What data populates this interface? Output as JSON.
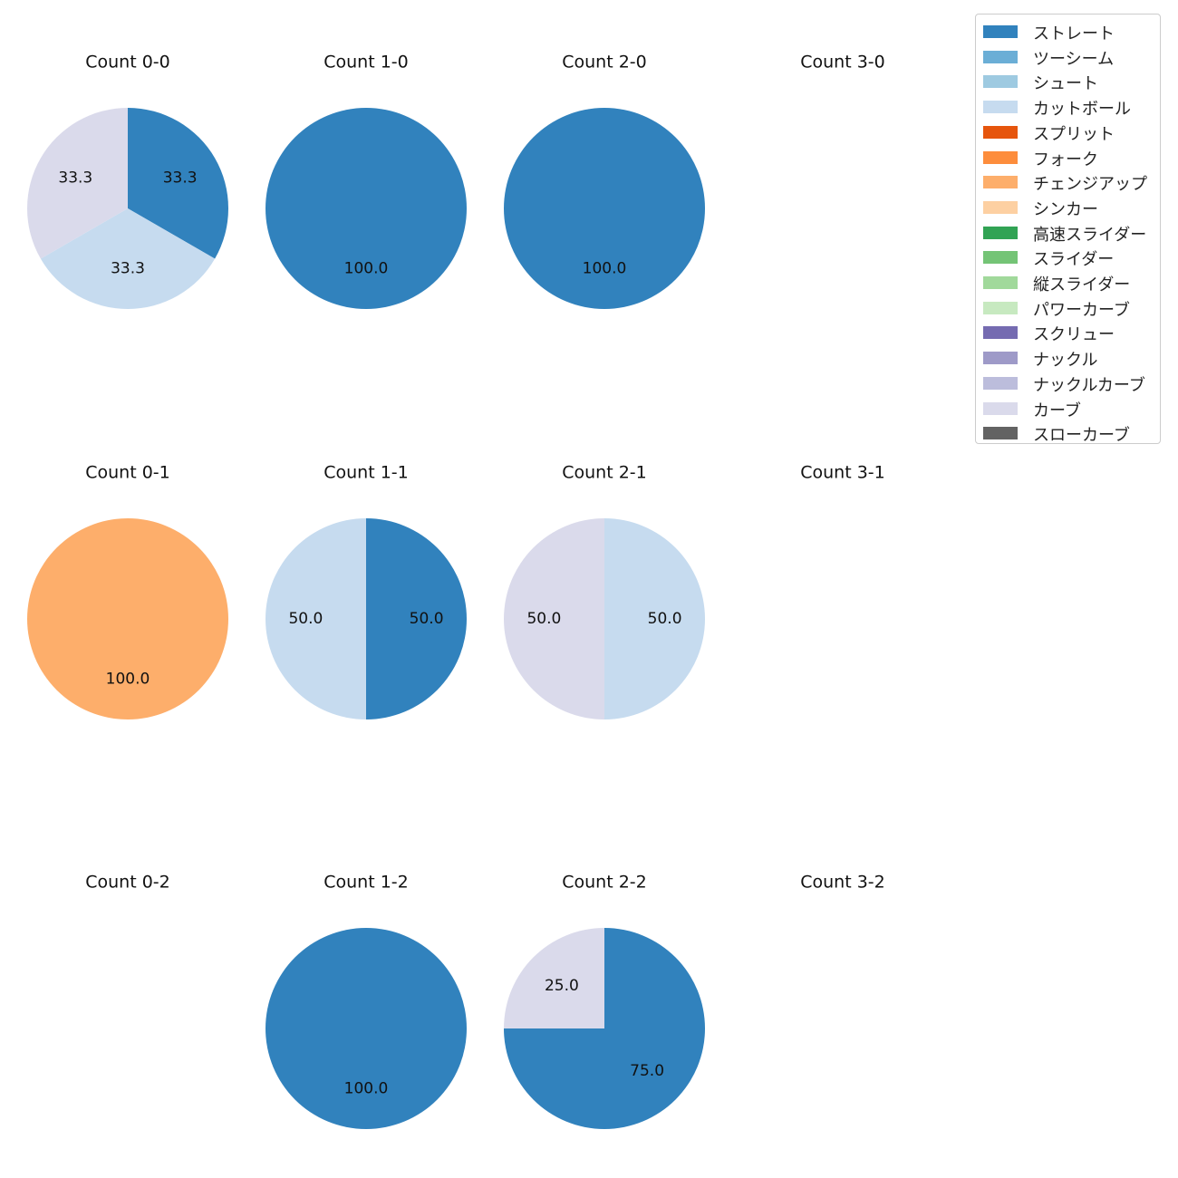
{
  "chart_data": {
    "type": "pie",
    "legend_placement": "top-right",
    "categories": [
      {
        "name": "ストレート",
        "color": "#3182bd"
      },
      {
        "name": "ツーシーム",
        "color": "#6baed6"
      },
      {
        "name": "シュート",
        "color": "#9ecae1"
      },
      {
        "name": "カットボール",
        "color": "#c6dbef"
      },
      {
        "name": "スプリット",
        "color": "#e6550d"
      },
      {
        "name": "フォーク",
        "color": "#fd8d3c"
      },
      {
        "name": "チェンジアップ",
        "color": "#fdae6b"
      },
      {
        "name": "シンカー",
        "color": "#fdd0a2"
      },
      {
        "name": "高速スライダー",
        "color": "#31a354"
      },
      {
        "name": "スライダー",
        "color": "#74c476"
      },
      {
        "name": "縦スライダー",
        "color": "#a1d99b"
      },
      {
        "name": "パワーカーブ",
        "color": "#c7e9c0"
      },
      {
        "name": "スクリュー",
        "color": "#756bb1"
      },
      {
        "name": "ナックル",
        "color": "#9e9ac8"
      },
      {
        "name": "ナックルカーブ",
        "color": "#bcbddc"
      },
      {
        "name": "カーブ",
        "color": "#dadaeb"
      },
      {
        "name": "スローカーブ",
        "color": "#636363"
      }
    ],
    "panels": [
      {
        "title": "Count 0-0",
        "slices": [
          {
            "category": "ストレート",
            "value": 33.3
          },
          {
            "category": "カットボール",
            "value": 33.3
          },
          {
            "category": "カーブ",
            "value": 33.3
          }
        ]
      },
      {
        "title": "Count 1-0",
        "slices": [
          {
            "category": "ストレート",
            "value": 100.0
          }
        ]
      },
      {
        "title": "Count 2-0",
        "slices": [
          {
            "category": "ストレート",
            "value": 100.0
          }
        ]
      },
      {
        "title": "Count 3-0",
        "slices": []
      },
      {
        "title": "Count 0-1",
        "slices": [
          {
            "category": "チェンジアップ",
            "value": 100.0
          }
        ]
      },
      {
        "title": "Count 1-1",
        "slices": [
          {
            "category": "ストレート",
            "value": 50.0
          },
          {
            "category": "カットボール",
            "value": 50.0
          }
        ]
      },
      {
        "title": "Count 2-1",
        "slices": [
          {
            "category": "カットボール",
            "value": 50.0
          },
          {
            "category": "カーブ",
            "value": 50.0
          }
        ]
      },
      {
        "title": "Count 3-1",
        "slices": []
      },
      {
        "title": "Count 0-2",
        "slices": []
      },
      {
        "title": "Count 1-2",
        "slices": [
          {
            "category": "ストレート",
            "value": 100.0
          }
        ]
      },
      {
        "title": "Count 2-2",
        "slices": [
          {
            "category": "ストレート",
            "value": 75.0
          },
          {
            "category": "カーブ",
            "value": 25.0
          }
        ]
      },
      {
        "title": "Count 3-2",
        "slices": []
      }
    ]
  }
}
